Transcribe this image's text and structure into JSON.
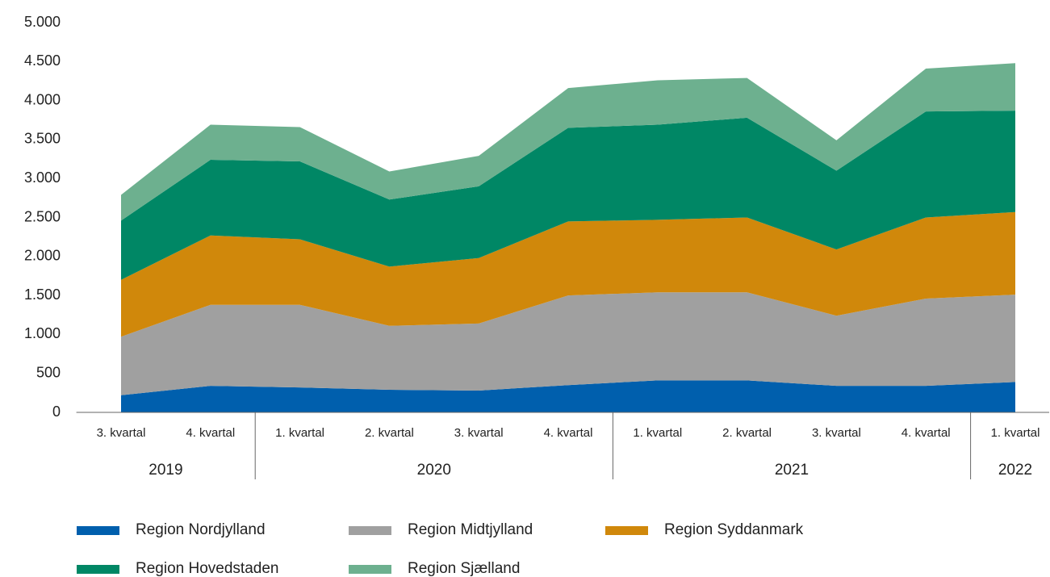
{
  "chart_data": {
    "type": "stacked_area",
    "categories": [
      "3. kvartal",
      "4. kvartal",
      "1. kvartal",
      "2. kvartal",
      "3. kvartal",
      "4. kvartal",
      "1. kvartal",
      "2. kvartal",
      "3. kvartal",
      "4. kvartal",
      "1. kvartal"
    ],
    "years": [
      "2019",
      "2019",
      "2020",
      "2020",
      "2020",
      "2020",
      "2021",
      "2021",
      "2021",
      "2021",
      "2022"
    ],
    "series": [
      {
        "name": "Region Nordjylland",
        "color": "#005fad",
        "values": [
          220,
          340,
          320,
          290,
          280,
          350,
          410,
          410,
          340,
          340,
          390
        ]
      },
      {
        "name": "Region Midtjylland",
        "color": "#a0a0a0",
        "values": [
          750,
          1040,
          1060,
          820,
          860,
          1150,
          1130,
          1130,
          900,
          1120,
          1120
        ]
      },
      {
        "name": "Region Syddanmark",
        "color": "#d0880b",
        "values": [
          730,
          890,
          840,
          760,
          840,
          950,
          930,
          960,
          850,
          1040,
          1060
        ]
      },
      {
        "name": "Region Hovedstaden",
        "color": "#008765",
        "values": [
          760,
          970,
          1000,
          860,
          920,
          1200,
          1220,
          1280,
          1010,
          1360,
          1300
        ]
      },
      {
        "name": "Region Sjælland",
        "color": "#6db08f",
        "values": [
          330,
          450,
          440,
          360,
          390,
          510,
          570,
          510,
          390,
          550,
          610
        ]
      }
    ],
    "ylim": [
      0,
      5000
    ],
    "yticks": [
      0,
      {
        "value": 500,
        "label": "500"
      },
      {
        "value": 1000,
        "label": "1.000"
      },
      {
        "value": 1500,
        "label": "1.500"
      },
      {
        "value": 2000,
        "label": "2.000"
      },
      {
        "value": 2500,
        "label": "2.500"
      },
      {
        "value": 3000,
        "label": "3.000"
      },
      {
        "value": 3500,
        "label": "3.500"
      },
      {
        "value": 4000,
        "label": "4.000"
      },
      {
        "value": 4500,
        "label": "4.500"
      },
      {
        "value": 5000,
        "label": "5.000"
      }
    ],
    "grid": false,
    "legend": "bottom"
  }
}
